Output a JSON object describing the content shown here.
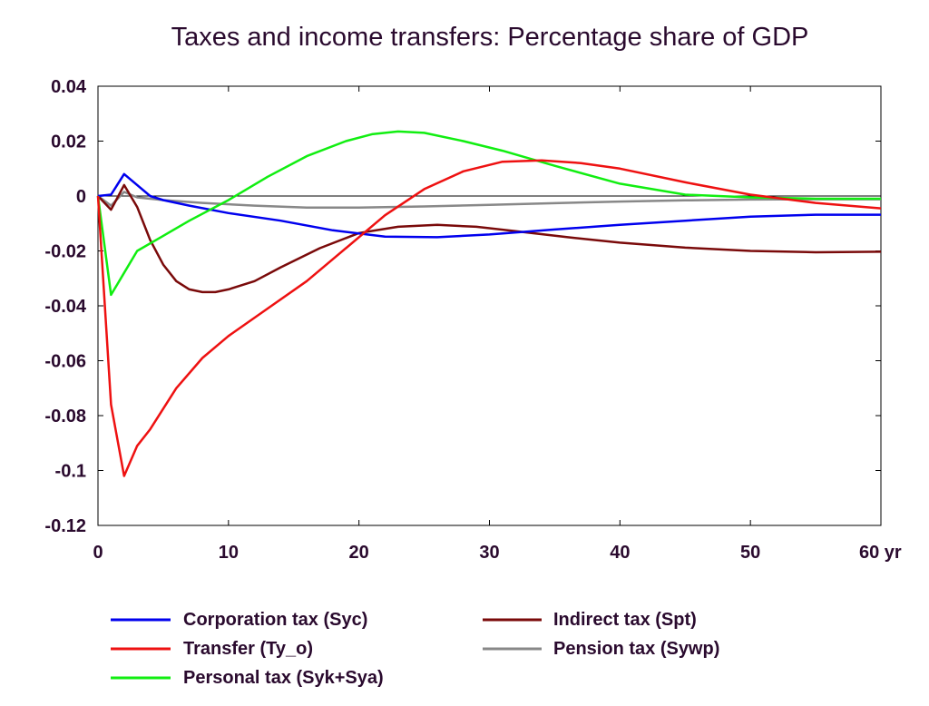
{
  "chart_data": {
    "type": "line",
    "title": "Taxes and income transfers: Percentage share of GDP",
    "xlabel": "",
    "ylabel": "",
    "xlim": [
      0,
      60
    ],
    "ylim": [
      -0.12,
      0.04
    ],
    "x_ticks": [
      0,
      10,
      20,
      30,
      40,
      50,
      60
    ],
    "x_tick_labels": [
      "0",
      "10",
      "20",
      "30",
      "40",
      "50",
      "60 yr"
    ],
    "y_ticks": [
      0.04,
      0.02,
      0,
      -0.02,
      -0.04,
      -0.06,
      -0.08,
      -0.1,
      -0.12
    ],
    "y_tick_labels": [
      "0.04",
      "0.02",
      "0",
      "-0.02",
      "-0.04",
      "-0.06",
      "-0.08",
      "-0.1",
      "-0.12"
    ],
    "grid": false,
    "legend_position": "bottom",
    "series": [
      {
        "name": "Corporation tax (Syc)",
        "color": "#0000ee",
        "x": [
          0,
          1,
          2,
          3,
          4,
          5,
          7,
          10,
          14,
          18,
          22,
          26,
          30,
          35,
          40,
          45,
          50,
          55,
          60
        ],
        "values": [
          0,
          0.0005,
          0.008,
          0.004,
          0,
          -0.0015,
          -0.0035,
          -0.0062,
          -0.009,
          -0.0125,
          -0.0148,
          -0.015,
          -0.014,
          -0.0122,
          -0.0105,
          -0.009,
          -0.0075,
          -0.0068,
          -0.0068
        ]
      },
      {
        "name": "Transfer (Ty_o)",
        "color": "#ee1111",
        "x": [
          0,
          1,
          2,
          3,
          4,
          6,
          8,
          10,
          13,
          16,
          19,
          22,
          25,
          28,
          31,
          34,
          37,
          40,
          45,
          50,
          55,
          60
        ],
        "values": [
          0,
          -0.076,
          -0.102,
          -0.091,
          -0.085,
          -0.07,
          -0.059,
          -0.051,
          -0.041,
          -0.031,
          -0.019,
          -0.007,
          0.0025,
          0.009,
          0.0125,
          0.013,
          0.012,
          0.01,
          0.005,
          0.0005,
          -0.0025,
          -0.0045
        ]
      },
      {
        "name": "Personal tax (Syk+Sya)",
        "color": "#11ee11",
        "x": [
          0,
          1,
          2,
          3,
          5,
          7,
          10,
          13,
          16,
          19,
          21,
          23,
          25,
          28,
          31,
          35,
          40,
          45,
          50,
          55,
          60
        ],
        "values": [
          0,
          -0.036,
          -0.028,
          -0.02,
          -0.0145,
          -0.009,
          -0.0015,
          0.007,
          0.0145,
          0.02,
          0.0225,
          0.0235,
          0.023,
          0.02,
          0.0165,
          0.011,
          0.0045,
          0.0005,
          -0.0005,
          -0.001,
          -0.001
        ]
      },
      {
        "name": "Indirect tax (Spt)",
        "color": "#7a0a0a",
        "x": [
          0,
          1,
          2,
          3,
          4,
          5,
          6,
          7,
          8,
          9,
          10,
          12,
          14,
          17,
          20,
          23,
          26,
          29,
          32,
          36,
          40,
          45,
          50,
          55,
          60
        ],
        "values": [
          0,
          -0.005,
          0.004,
          -0.004,
          -0.016,
          -0.025,
          -0.031,
          -0.034,
          -0.035,
          -0.035,
          -0.034,
          -0.031,
          -0.026,
          -0.019,
          -0.0135,
          -0.0112,
          -0.0105,
          -0.0112,
          -0.0128,
          -0.015,
          -0.017,
          -0.0188,
          -0.02,
          -0.0205,
          -0.0203
        ]
      },
      {
        "name": "Pension tax (Sywp)",
        "color": "#888888",
        "x": [
          0,
          1,
          2,
          3,
          5,
          8,
          12,
          16,
          20,
          25,
          30,
          35,
          40,
          45,
          50,
          55,
          60
        ],
        "values": [
          0,
          -0.0035,
          0.0015,
          -0.0005,
          -0.0015,
          -0.0025,
          -0.0035,
          -0.0042,
          -0.0042,
          -0.0038,
          -0.0032,
          -0.0026,
          -0.002,
          -0.0016,
          -0.0013,
          -0.0012,
          -0.0012
        ]
      }
    ]
  }
}
